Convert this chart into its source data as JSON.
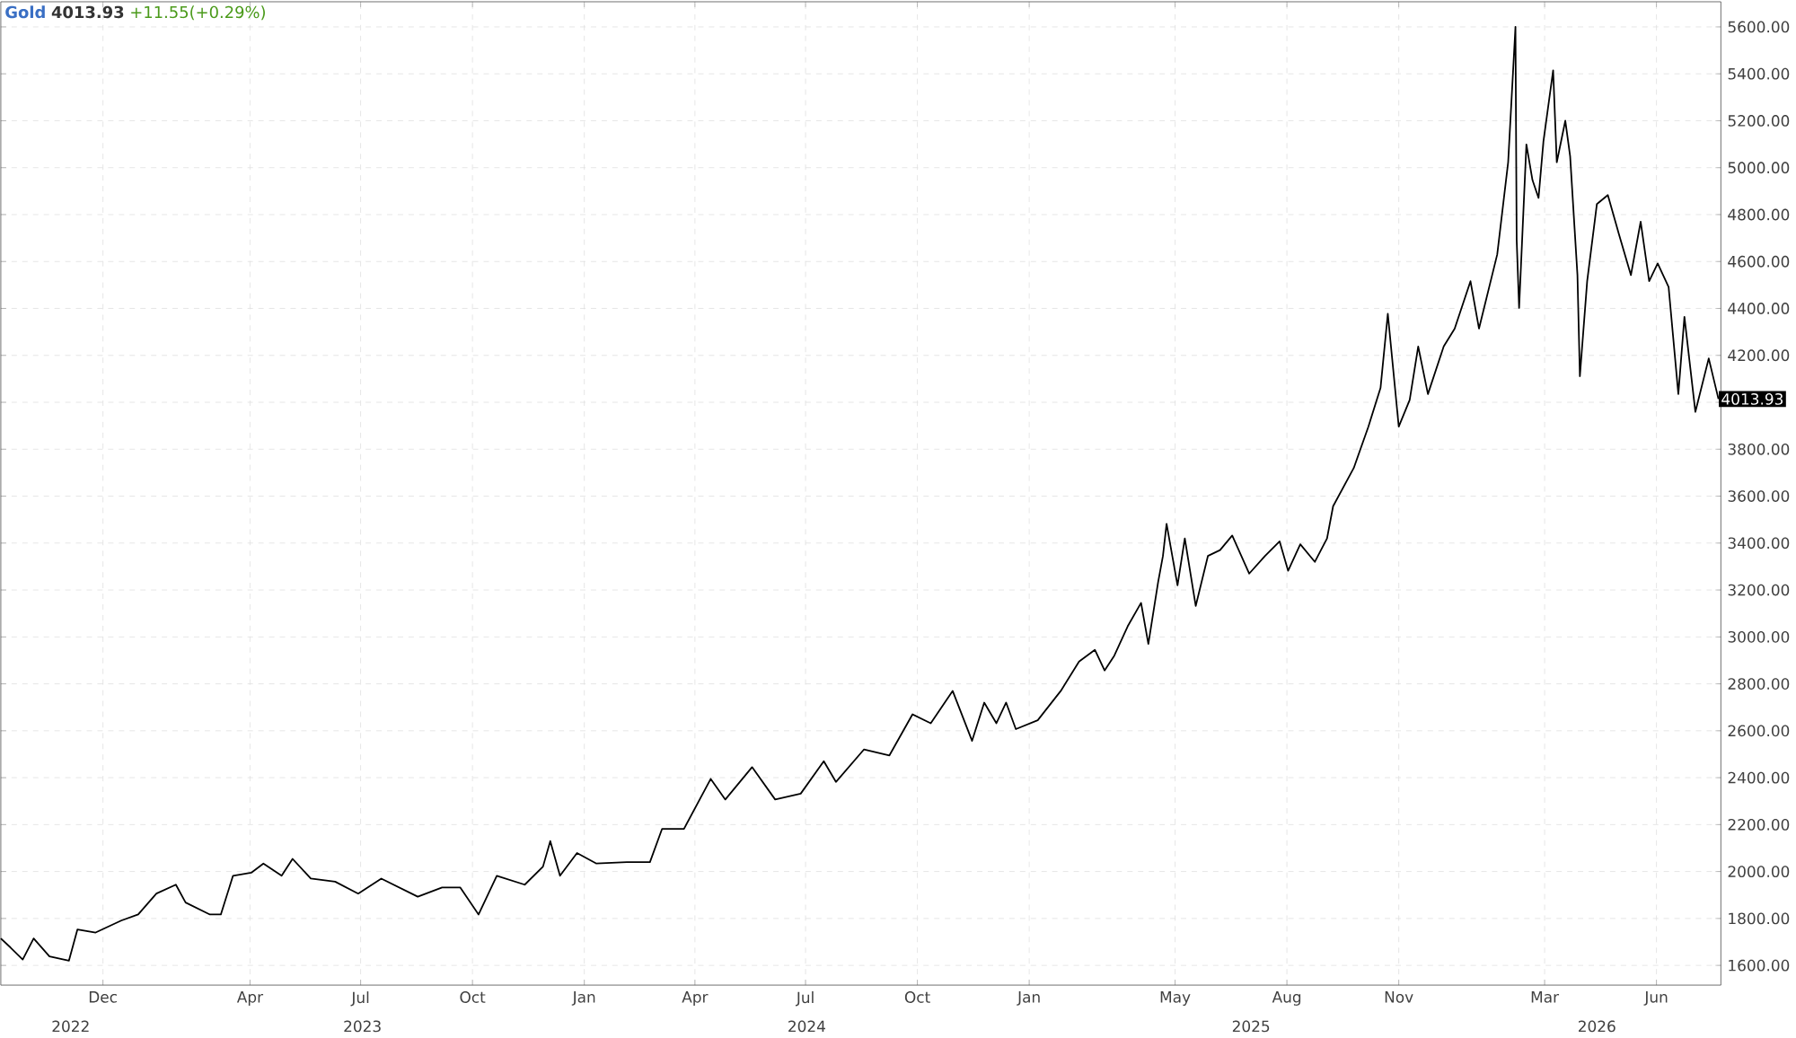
{
  "chart_data": {
    "type": "line",
    "title": "Gold",
    "subtitle": "4013.93",
    "annotations": [
      "+11.55(+0.29%)",
      "2022",
      "2023",
      "2024",
      "2025",
      "2026"
    ],
    "xlim": [
      "2022-09-08",
      "2026-07-24"
    ],
    "xticks": [
      {
        "value": "2022-12-01",
        "label": "Dec"
      },
      {
        "value": "2023-04-01",
        "label": "Apr"
      },
      {
        "value": "2023-07-01",
        "label": "Jul"
      },
      {
        "value": "2023-10-01",
        "label": "Oct"
      },
      {
        "value": "2024-01-01",
        "label": "Jan"
      },
      {
        "value": "2024-04-01",
        "label": "Apr"
      },
      {
        "value": "2024-07-01",
        "label": "Jul"
      },
      {
        "value": "2024-10-01",
        "label": "Oct"
      },
      {
        "value": "2025-01-01",
        "label": "Jan"
      },
      {
        "value": "2025-05-01",
        "label": "May"
      },
      {
        "value": "2025-08-01",
        "label": "Aug"
      },
      {
        "value": "2025-11-01",
        "label": "Nov"
      },
      {
        "value": "2026-03-01",
        "label": "Mar"
      },
      {
        "value": "2026-06-01",
        "label": "Jun"
      }
    ],
    "ylim": [
      1516,
      5707
    ],
    "yticks": [
      {
        "value": 1600,
        "label": "1600.00"
      },
      {
        "value": 1800,
        "label": "1800.00"
      },
      {
        "value": 2000,
        "label": "2000.00"
      },
      {
        "value": 2200,
        "label": "2200.00"
      },
      {
        "value": 2400,
        "label": "2400.00"
      },
      {
        "value": 2600,
        "label": "2600.00"
      },
      {
        "value": 2800,
        "label": "2800.00"
      },
      {
        "value": 3000,
        "label": "3000.00"
      },
      {
        "value": 3200,
        "label": "3200.00"
      },
      {
        "value": 3400,
        "label": "3400.00"
      },
      {
        "value": 3600,
        "label": "3600.00"
      },
      {
        "value": 3800,
        "label": "3800.00"
      },
      {
        "value": 4000,
        "label": null
      },
      {
        "value": 4200,
        "label": "4200.00"
      },
      {
        "value": 4400,
        "label": "4400.00"
      },
      {
        "value": 4600,
        "label": "4600.00"
      },
      {
        "value": 4800,
        "label": "4800.00"
      },
      {
        "value": 5000,
        "label": "5000.00"
      },
      {
        "value": 5200,
        "label": "5200.00"
      },
      {
        "value": 5400,
        "label": "5400.00"
      },
      {
        "value": 5600,
        "label": "5600.00"
      }
    ],
    "grid": true,
    "series": [
      {
        "color": "#000000",
        "x": [
          "2022-09-08",
          "2022-09-16",
          "2022-09-26",
          "2022-10-05",
          "2022-10-18",
          "2022-11-03",
          "2022-11-10",
          "2022-11-25",
          "2022-12-16",
          "2022-12-30",
          "2023-01-14",
          "2023-01-30",
          "2023-02-07",
          "2023-02-27",
          "2023-03-08",
          "2023-03-18",
          "2023-04-02",
          "2023-04-12",
          "2023-04-27",
          "2023-05-06",
          "2023-05-21",
          "2023-06-10",
          "2023-06-29",
          "2023-07-18",
          "2023-08-17",
          "2023-09-06",
          "2023-09-21",
          "2023-10-06",
          "2023-10-21",
          "2023-11-13",
          "2023-11-28",
          "2023-12-04",
          "2023-12-12",
          "2023-12-26",
          "2024-01-11",
          "2024-02-05",
          "2024-02-24",
          "2024-03-05",
          "2024-03-23",
          "2024-04-14",
          "2024-04-26",
          "2024-05-18",
          "2024-06-06",
          "2024-06-27",
          "2024-07-16",
          "2024-07-26",
          "2024-08-18",
          "2024-09-08",
          "2024-09-27",
          "2024-10-12",
          "2024-10-30",
          "2024-11-15",
          "2024-11-25",
          "2024-12-05",
          "2024-12-13",
          "2024-12-21",
          "2025-01-08",
          "2025-01-27",
          "2025-02-11",
          "2025-02-24",
          "2025-03-04",
          "2025-03-12",
          "2025-03-23",
          "2025-04-03",
          "2025-04-09",
          "2025-04-17",
          "2025-04-21",
          "2025-04-24",
          "2025-05-03",
          "2025-05-09",
          "2025-05-18",
          "2025-05-28",
          "2025-06-07",
          "2025-06-17",
          "2025-07-01",
          "2025-07-14",
          "2025-07-26",
          "2025-08-02",
          "2025-08-12",
          "2025-08-24",
          "2025-09-03",
          "2025-09-08",
          "2025-09-25",
          "2025-10-07",
          "2025-10-17",
          "2025-10-23",
          "2025-11-01",
          "2025-11-10",
          "2025-11-17",
          "2025-11-25",
          "2025-12-08",
          "2025-12-17",
          "2025-12-30",
          "2026-01-06",
          "2026-01-21",
          "2026-01-30",
          "2026-02-05",
          "2026-02-06",
          "2026-02-08",
          "2026-02-14",
          "2026-02-19",
          "2026-02-24",
          "2026-02-28",
          "2026-03-08",
          "2026-03-11",
          "2026-03-18",
          "2026-03-22",
          "2026-03-28",
          "2026-03-30",
          "2026-04-05",
          "2026-04-13",
          "2026-04-22",
          "2026-05-01",
          "2026-05-11",
          "2026-05-19",
          "2026-05-26",
          "2026-06-02",
          "2026-06-11",
          "2026-06-19",
          "2026-06-24",
          "2026-07-03",
          "2026-07-14",
          "2026-07-22"
        ],
        "values": [
          1715,
          1676,
          1625,
          1715,
          1638,
          1620,
          1753,
          1740,
          1791,
          1817,
          1906,
          1944,
          1868,
          1817,
          1817,
          1982,
          1995,
          2034,
          1982,
          2054,
          1970,
          1957,
          1906,
          1970,
          1893,
          1932,
          1932,
          1817,
          1982,
          1944,
          2021,
          2130,
          1982,
          2079,
          2034,
          2040,
          2040,
          2182,
          2182,
          2395,
          2307,
          2445,
          2307,
          2332,
          2470,
          2382,
          2520,
          2495,
          2670,
          2632,
          2770,
          2557,
          2720,
          2632,
          2720,
          2607,
          2645,
          2770,
          2895,
          2945,
          2857,
          2920,
          3045,
          3145,
          2970,
          3232,
          3345,
          3482,
          3220,
          3420,
          3132,
          3345,
          3370,
          3432,
          3270,
          3345,
          3407,
          3282,
          3395,
          3320,
          3420,
          3557,
          3720,
          3896,
          4061,
          4377,
          3896,
          4010,
          4238,
          4035,
          4238,
          4314,
          4516,
          4314,
          4630,
          5023,
          5600,
          4693,
          4402,
          5099,
          4947,
          4871,
          5111,
          5415,
          5023,
          5200,
          5048,
          4542,
          4111,
          4516,
          4845,
          4883,
          4719,
          4542,
          4770,
          4516,
          4592,
          4491,
          4035,
          4364,
          3959,
          4187,
          4013.93
        ],
        "value_labels": [
          null,
          null,
          null,
          null,
          null,
          null,
          null,
          null,
          null,
          null,
          null,
          null,
          null,
          null,
          null,
          null,
          null,
          null,
          null,
          null,
          null,
          null,
          null,
          null,
          null,
          null,
          null,
          null,
          null,
          null,
          null,
          null,
          null,
          null,
          null,
          null,
          null,
          null,
          null,
          null,
          null,
          null,
          null,
          null,
          null,
          null,
          null,
          null,
          null,
          null,
          null,
          null,
          null,
          null,
          null,
          null,
          null,
          null,
          null,
          null,
          null,
          null,
          null,
          null,
          null,
          null,
          null,
          null,
          null,
          null,
          null,
          null,
          null,
          null,
          null,
          null,
          null,
          null,
          null,
          null,
          null,
          null,
          null,
          null,
          null,
          null,
          null,
          null,
          null,
          null,
          null,
          null,
          null,
          null,
          null,
          null,
          null,
          null,
          null,
          null,
          null,
          null,
          null,
          null,
          null,
          null,
          null,
          null,
          null,
          null,
          null,
          null,
          null,
          null,
          null,
          null,
          null,
          null,
          null,
          null,
          null,
          null,
          "4013.93"
        ]
      }
    ]
  }
}
